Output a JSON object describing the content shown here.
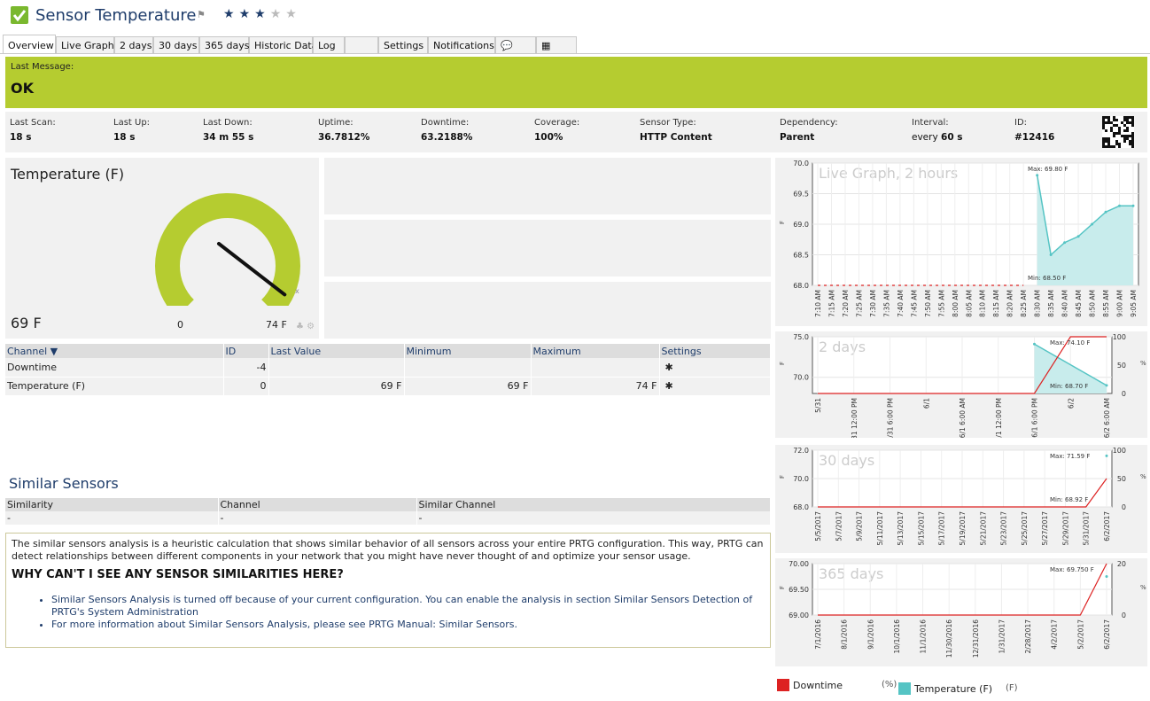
{
  "header": {
    "title": "Sensor Temperature",
    "stars_filled": 3,
    "stars_total": 5,
    "star_glyph": "★",
    "flag_glyph": "⚑"
  },
  "tabs": [
    {
      "label": "Overview"
    },
    {
      "label": "Live Graph"
    },
    {
      "label": "2 days"
    },
    {
      "label": "30 days"
    },
    {
      "label": "365 days"
    },
    {
      "label": "Historic Data"
    },
    {
      "label": "Log"
    },
    {
      "label": ""
    },
    {
      "label": "Settings"
    },
    {
      "label": "Notifications"
    },
    {
      "label": "💬"
    },
    {
      "label": "▦"
    }
  ],
  "message": {
    "label": "Last Message:",
    "text": "OK"
  },
  "stats": [
    {
      "label": "Last Scan:",
      "value": "18 s"
    },
    {
      "label": "Last Up:",
      "value": "18 s"
    },
    {
      "label": "Last Down:",
      "value": "34 m 55 s"
    },
    {
      "label": "Uptime:",
      "value": "36.7812%"
    },
    {
      "label": "Downtime:",
      "value": "63.2188%"
    },
    {
      "label": "Coverage:",
      "value": "100%"
    },
    {
      "label": "Sensor Type:",
      "value": "HTTP Content"
    },
    {
      "label": "Dependency:",
      "value": "Parent"
    },
    {
      "label": "Interval:",
      "value_prefix": "every ",
      "value": "60 s"
    },
    {
      "label": "ID:",
      "value": "#12416"
    }
  ],
  "gauge": {
    "title": "Temperature (F)",
    "value": "69 F",
    "min": "0",
    "max": "74 F",
    "value_num": 69,
    "min_num": 0,
    "max_num": 74,
    "color": "#b5cc30"
  },
  "channels": {
    "headers": [
      "Channel",
      "ID",
      "Last Value",
      "Minimum",
      "Maximum",
      "Settings"
    ],
    "rows": [
      {
        "name": "Downtime",
        "id": "-4",
        "last": "",
        "min": "",
        "max": ""
      },
      {
        "name": "Temperature (F)",
        "id": "0",
        "last": "69 F",
        "min": "69 F",
        "max": "74 F"
      }
    ],
    "settings_glyph": "✱"
  },
  "similar": {
    "title": "Similar Sensors",
    "headers": [
      "Similarity",
      "Channel",
      "Similar Channel"
    ],
    "row": [
      "-",
      "-",
      "-"
    ],
    "intro": "The similar sensors analysis is a heuristic calculation that shows similar behavior of all sensors across your entire PRTG configuration. This way, PRTG can detect relationships between different components in your network that you might have never thought of and optimize your sensor usage.",
    "heading": "WHY CAN'T I SEE ANY SENSOR SIMILARITIES HERE?",
    "bullets": [
      "Similar Sensors Analysis is turned off because of your current configuration. You can enable the analysis in section Similar Sensors Detection of PRTG's System Administration",
      "For more information about Similar Sensors Analysis, please see PRTG Manual: Similar Sensors."
    ]
  },
  "legend": [
    {
      "label": "Downtime",
      "unit": "(%)",
      "color": "#dd2222"
    },
    {
      "label": "Temperature (F)",
      "unit": "(F)",
      "color": "#55c4c4"
    }
  ],
  "chart_data": [
    {
      "type": "line",
      "title": "Live Graph, 2 hours",
      "ylabel": "F",
      "ylim": [
        68.0,
        70.0
      ],
      "yticks": [
        "70.0",
        "69.5",
        "69.0",
        "68.5",
        "68.0"
      ],
      "x": [
        "7:10 AM",
        "7:15 AM",
        "7:20 AM",
        "7:25 AM",
        "7:30 AM",
        "7:35 AM",
        "7:40 AM",
        "7:45 AM",
        "7:50 AM",
        "7:55 AM",
        "8:00 AM",
        "8:05 AM",
        "8:10 AM",
        "8:15 AM",
        "8:20 AM",
        "8:25 AM",
        "8:30 AM",
        "8:35 AM",
        "8:40 AM",
        "8:45 AM",
        "8:50 AM",
        "8:55 AM",
        "9:00 AM",
        "9:05 AM"
      ],
      "series": [
        {
          "name": "Downtime",
          "values": [
            68.0,
            68.0,
            68.0,
            68.0,
            68.0,
            68.0,
            68.0,
            68.0,
            68.0,
            68.0,
            68.0,
            68.0,
            68.0,
            68.0,
            68.0,
            68.0,
            null,
            null,
            null,
            null,
            null,
            null,
            null,
            null
          ]
        },
        {
          "name": "Temperature (F)",
          "values": [
            null,
            null,
            null,
            null,
            null,
            null,
            null,
            null,
            null,
            null,
            null,
            null,
            null,
            null,
            null,
            null,
            69.8,
            68.5,
            68.7,
            68.8,
            69.0,
            69.2,
            69.3,
            69.3
          ]
        }
      ],
      "annotations": [
        "Max: 69.80 F",
        "Min: 68.50 F"
      ]
    },
    {
      "type": "line",
      "title": "2 days",
      "ylabel": "F",
      "y2label": "%",
      "ylim": [
        68.0,
        75.0
      ],
      "yticks": [
        "75.0",
        "70.0"
      ],
      "y2ticks": [
        "100",
        "50",
        "0"
      ],
      "x": [
        "5/31",
        "5/31 12:00 PM",
        "5/31 6:00 PM",
        "6/1",
        "6/1 6:00 AM",
        "6/1 12:00 PM",
        "6/1 6:00 PM",
        "6/2",
        "6/2 6:00 AM"
      ],
      "series": [
        {
          "name": "Downtime",
          "values": [
            0,
            0,
            0,
            0,
            0,
            0,
            0,
            100,
            100
          ]
        },
        {
          "name": "Temperature (F)",
          "values": [
            null,
            null,
            null,
            null,
            null,
            null,
            74.1,
            null,
            69.0
          ]
        }
      ],
      "annotations": [
        "Max: 74.10 F",
        "Min: 68.70 F"
      ]
    },
    {
      "type": "line",
      "title": "30 days",
      "ylabel": "F",
      "y2label": "%",
      "ylim": [
        68.0,
        72.0
      ],
      "yticks": [
        "72.0",
        "70.0",
        "68.0"
      ],
      "y2ticks": [
        "100",
        "50",
        "0"
      ],
      "x": [
        "5/5/2017",
        "5/7/2017",
        "5/9/2017",
        "5/11/2017",
        "5/13/2017",
        "5/15/2017",
        "5/17/2017",
        "5/19/2017",
        "5/21/2017",
        "5/23/2017",
        "5/25/2017",
        "5/27/2017",
        "5/29/2017",
        "5/31/2017",
        "6/2/2017"
      ],
      "series": [
        {
          "name": "Downtime",
          "values": [
            0,
            0,
            0,
            0,
            0,
            0,
            0,
            0,
            0,
            0,
            0,
            0,
            0,
            0,
            50
          ]
        },
        {
          "name": "Temperature (F)",
          "values": [
            null,
            null,
            null,
            null,
            null,
            null,
            null,
            null,
            null,
            null,
            null,
            null,
            null,
            null,
            71.6
          ]
        }
      ],
      "annotations": [
        "Max: 71.59 F",
        "Min: 68.92 F"
      ]
    },
    {
      "type": "line",
      "title": "365 days",
      "ylabel": "F",
      "y2label": "%",
      "ylim": [
        69.0,
        70.0
      ],
      "yticks": [
        "70.00",
        "69.50",
        "69.00"
      ],
      "y2ticks": [
        "20",
        "0"
      ],
      "x": [
        "7/1/2016",
        "8/1/2016",
        "9/1/2016",
        "10/1/2016",
        "11/1/2016",
        "11/30/2016",
        "12/31/2016",
        "1/31/2017",
        "2/28/2017",
        "4/2/2017",
        "5/2/2017",
        "6/2/2017"
      ],
      "series": [
        {
          "name": "Downtime",
          "values": [
            0,
            0,
            0,
            0,
            0,
            0,
            0,
            0,
            0,
            0,
            0,
            20
          ]
        },
        {
          "name": "Temperature (F)",
          "values": [
            null,
            null,
            null,
            null,
            null,
            null,
            null,
            null,
            null,
            null,
            null,
            69.75
          ]
        }
      ],
      "annotations": [
        "Max: 69.750 F"
      ]
    }
  ]
}
